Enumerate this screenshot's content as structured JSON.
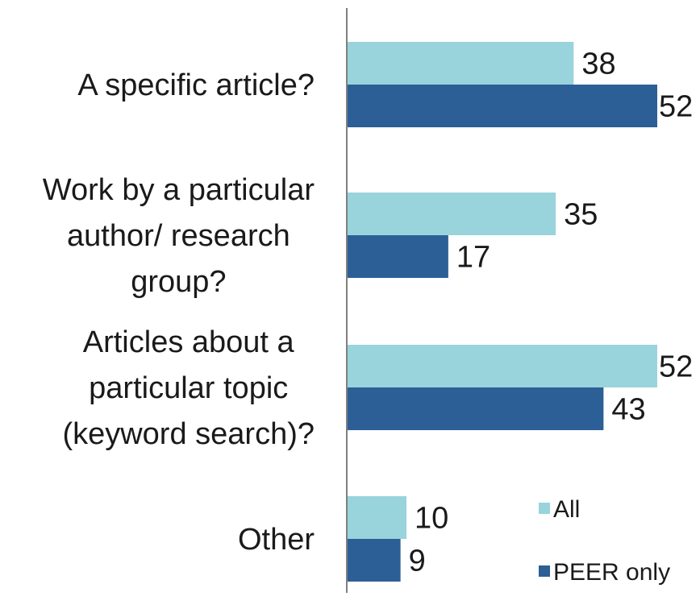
{
  "chart_data": {
    "type": "bar",
    "orientation": "horizontal",
    "categories": [
      [
        "A specific article?"
      ],
      [
        "Work by a particular",
        "author/ research",
        "group?"
      ],
      [
        "Articles about a",
        "particular topic",
        "(keyword search)?"
      ],
      [
        "Other"
      ]
    ],
    "series": [
      {
        "name": "All",
        "color": "#99d3dc",
        "values": [
          38,
          35,
          52,
          10
        ]
      },
      {
        "name": "PEER only",
        "color": "#2b5f96",
        "values": [
          52,
          17,
          43,
          9
        ]
      }
    ],
    "xlim": [
      0,
      52
    ],
    "grid": false,
    "legend_position": "bottom-right"
  }
}
